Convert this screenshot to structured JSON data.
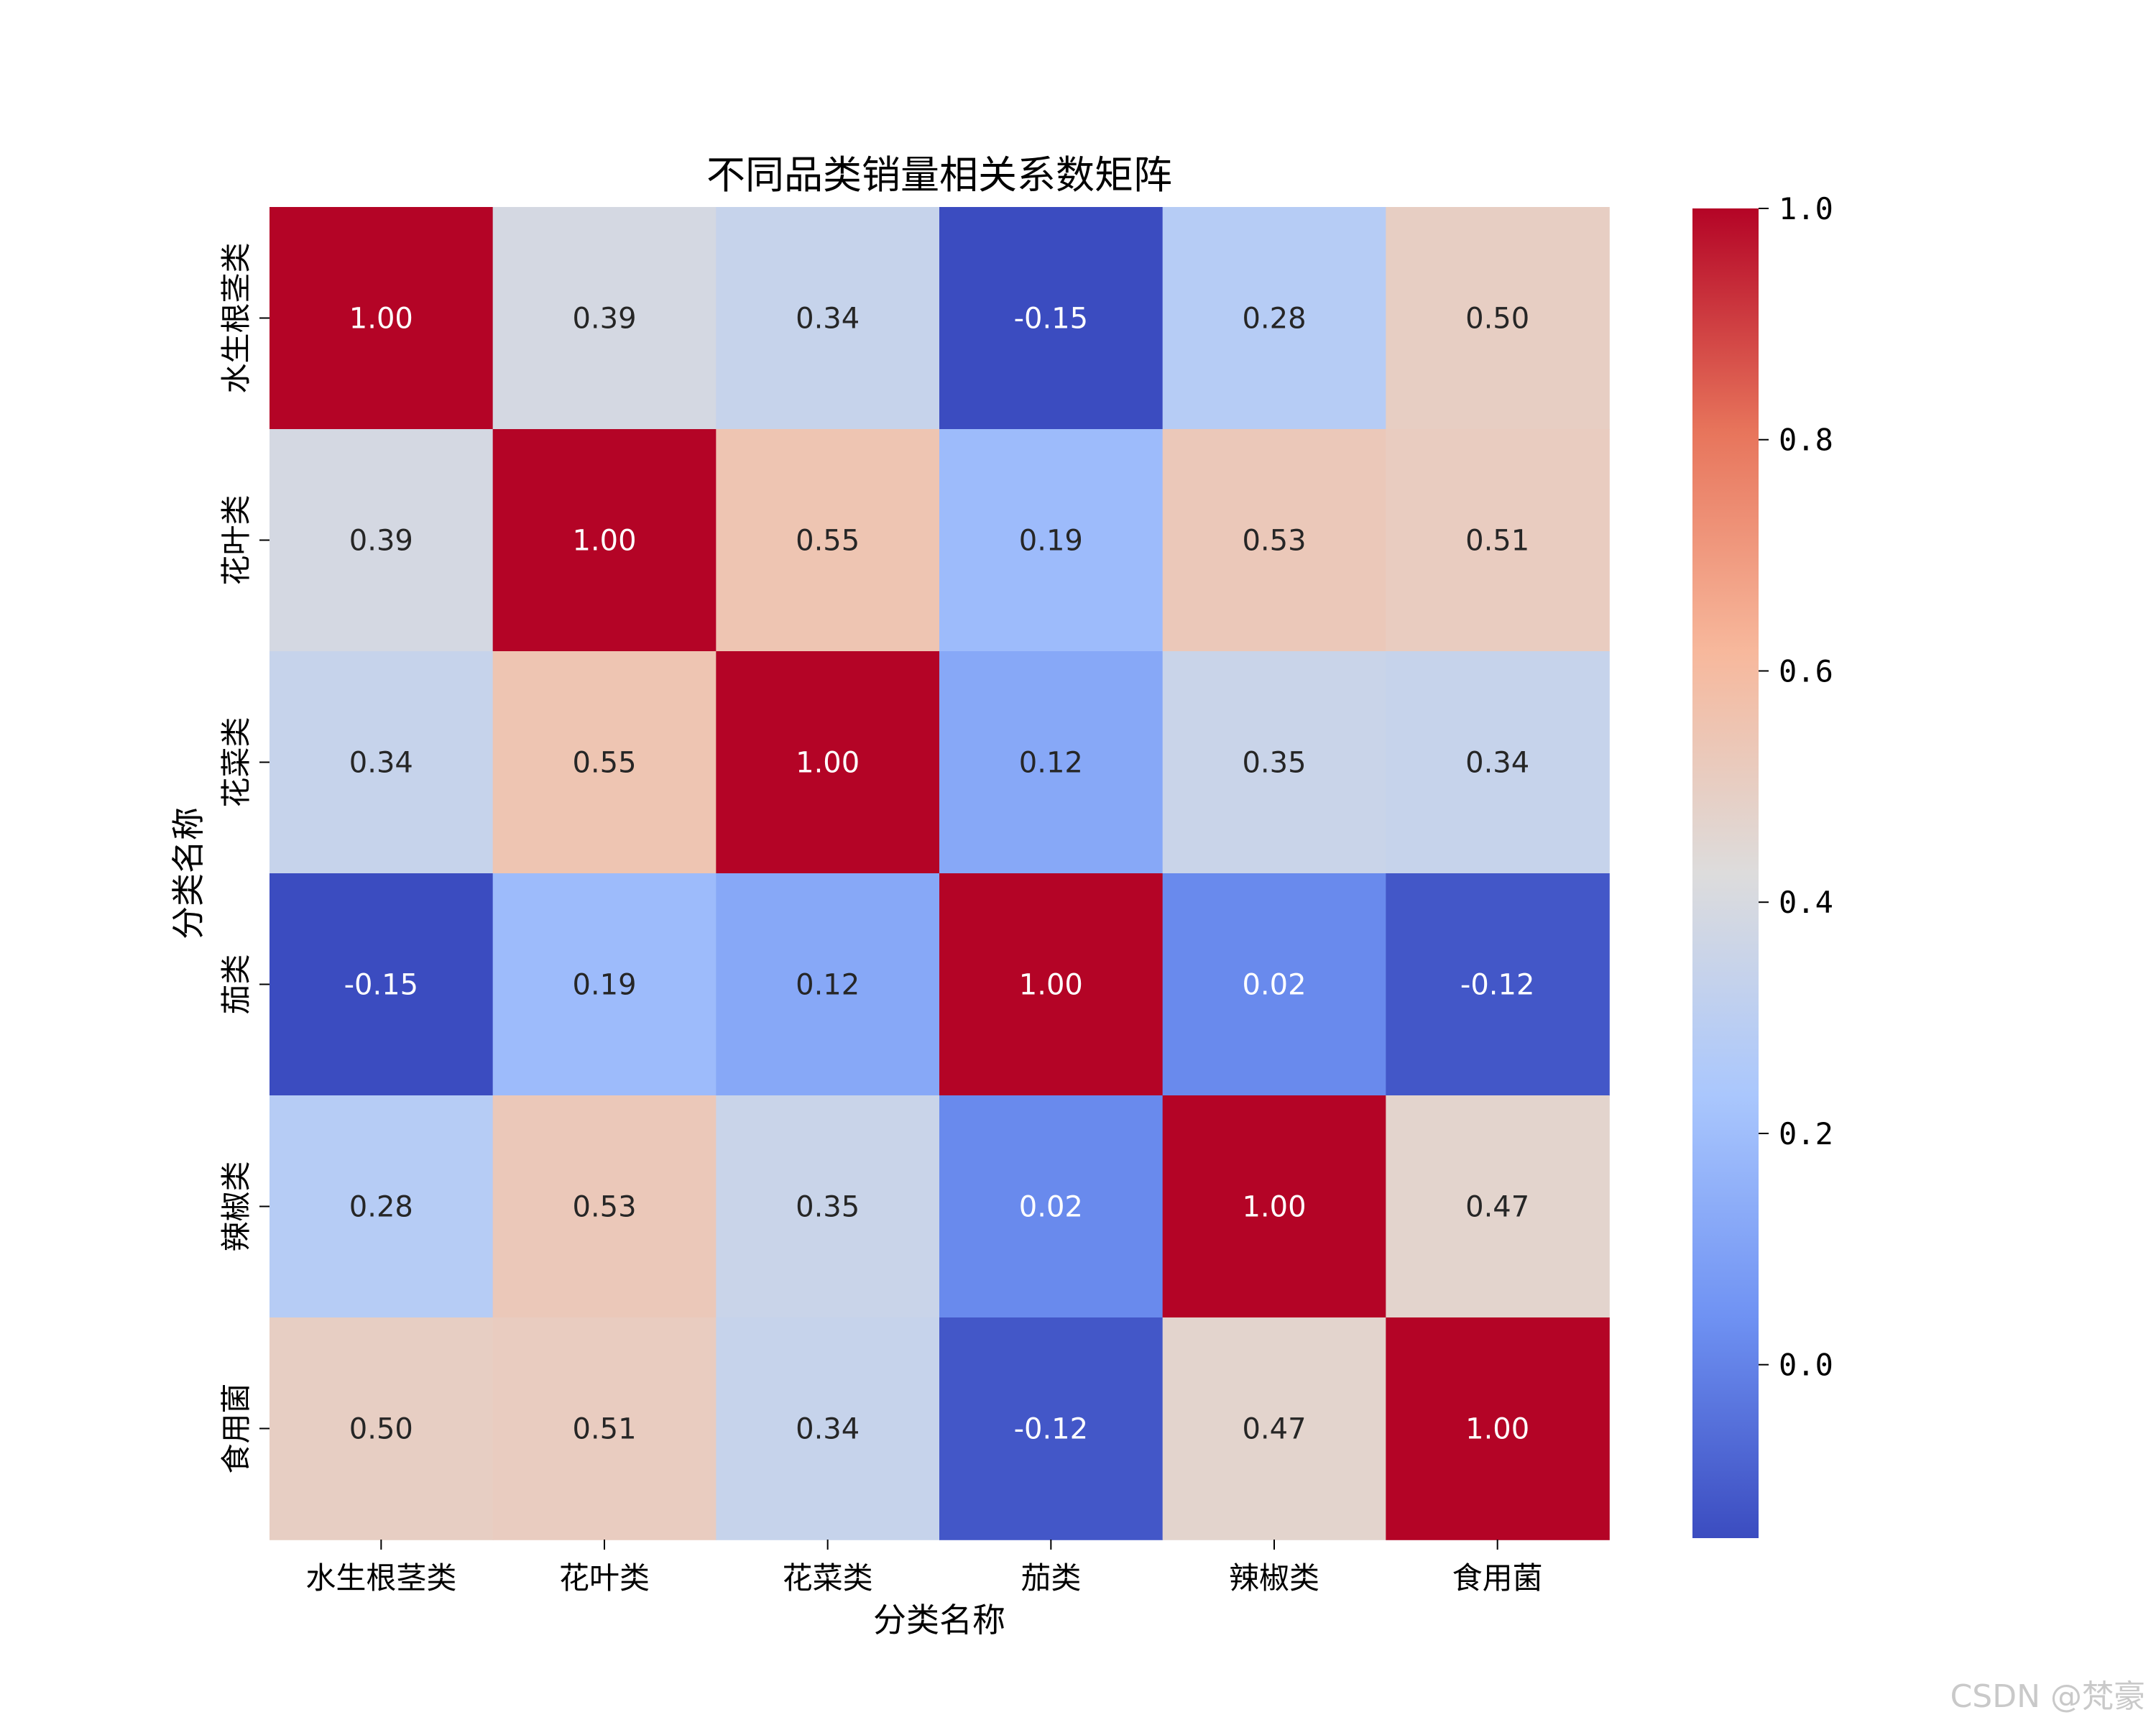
{
  "chart_data": {
    "type": "heatmap",
    "title": "不同品类销量相关系数矩阵",
    "xlabel": "分类名称",
    "ylabel": "分类名称",
    "categories": [
      "水生根茎类",
      "花叶类",
      "花菜类",
      "茄类",
      "辣椒类",
      "食用菌"
    ],
    "values": [
      [
        1.0,
        0.39,
        0.34,
        -0.15,
        0.28,
        0.5
      ],
      [
        0.39,
        1.0,
        0.55,
        0.19,
        0.53,
        0.51
      ],
      [
        0.34,
        0.55,
        1.0,
        0.12,
        0.35,
        0.34
      ],
      [
        -0.15,
        0.19,
        0.12,
        1.0,
        0.02,
        -0.12
      ],
      [
        0.28,
        0.53,
        0.35,
        0.02,
        1.0,
        0.47
      ],
      [
        0.5,
        0.51,
        0.34,
        -0.12,
        0.47,
        1.0
      ]
    ],
    "cell_labels": [
      [
        "1.00",
        "0.39",
        "0.34",
        "-0.15",
        "0.28",
        "0.50"
      ],
      [
        "0.39",
        "1.00",
        "0.55",
        "0.19",
        "0.53",
        "0.51"
      ],
      [
        "0.34",
        "0.55",
        "1.00",
        "0.12",
        "0.35",
        "0.34"
      ],
      [
        "-0.15",
        "0.19",
        "0.12",
        "1.00",
        "0.02",
        "-0.12"
      ],
      [
        "0.28",
        "0.53",
        "0.35",
        "0.02",
        "1.00",
        "0.47"
      ],
      [
        "0.50",
        "0.51",
        "0.34",
        "-0.12",
        "0.47",
        "1.00"
      ]
    ],
    "colormap": "coolwarm",
    "colormap_stops": [
      "#3b4cc0",
      "#6f92f3",
      "#aac7fd",
      "#dddcdc",
      "#f7b89c",
      "#e7745b",
      "#b40426"
    ],
    "colorbar": {
      "vmin": -0.15,
      "vmax": 1.0,
      "ticks": [
        0.0,
        0.2,
        0.4,
        0.6,
        0.8,
        1.0
      ],
      "tick_labels": [
        "0.0",
        "0.2",
        "0.4",
        "0.6",
        "0.8",
        "1.0"
      ]
    }
  },
  "watermark": "CSDN @梵豪"
}
